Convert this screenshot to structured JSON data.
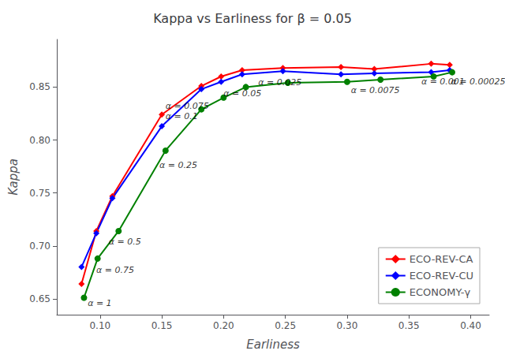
{
  "chart_data": {
    "type": "line",
    "title": "Kappa vs Earliness for β = 0.05",
    "xlabel": "Earliness",
    "ylabel": "Kappa",
    "xlim": [
      0.065,
      0.415
    ],
    "ylim": [
      0.635,
      0.895
    ],
    "xticks": [
      {
        "value": 0.1,
        "label": "0.10"
      },
      0.15,
      {
        "value": 0.2,
        "label": "0.20"
      },
      0.25,
      {
        "value": 0.3,
        "label": "0.30"
      },
      0.35,
      {
        "value": 0.4,
        "label": "0.40"
      }
    ],
    "yticks": [
      0.65,
      {
        "value": 0.7,
        "label": "0.70"
      },
      0.75,
      {
        "value": 0.8,
        "label": "0.80"
      },
      0.85
    ],
    "grid": false,
    "legend": "lower right",
    "series": [
      {
        "name": "ECO-REV-CA",
        "color": "red",
        "marker": "diamond",
        "x": [
          0.085,
          0.097,
          0.11,
          0.15,
          0.182,
          0.198,
          0.215,
          0.248,
          0.295,
          0.322,
          0.368,
          0.383
        ],
        "values": [
          0.664,
          0.714,
          0.747,
          0.824,
          0.851,
          0.86,
          0.866,
          0.868,
          0.869,
          0.867,
          0.872,
          0.871
        ]
      },
      {
        "name": "ECO-REV-CU",
        "color": "blue",
        "marker": "diamond",
        "x": [
          0.085,
          0.097,
          0.11,
          0.15,
          0.182,
          0.198,
          0.215,
          0.248,
          0.295,
          0.322,
          0.368,
          0.383
        ],
        "values": [
          0.68,
          0.712,
          0.745,
          0.813,
          0.848,
          0.855,
          0.862,
          0.865,
          0.862,
          0.863,
          0.864,
          0.866
        ]
      },
      {
        "name": "ECONOMY-γ",
        "color": "green",
        "marker": "circle",
        "x": [
          0.087,
          0.098,
          0.115,
          0.153,
          0.182,
          0.2,
          0.218,
          0.252,
          0.3,
          0.327,
          0.37,
          0.385
        ],
        "values": [
          0.651,
          0.688,
          0.714,
          0.79,
          0.829,
          0.84,
          0.85,
          0.854,
          0.855,
          0.857,
          0.86,
          0.864
        ]
      }
    ],
    "annotations": [
      {
        "text": "α = 1",
        "x": 0.09,
        "y": 0.642
      },
      {
        "text": "α = 0.75",
        "x": 0.097,
        "y": 0.673
      },
      {
        "text": "α = 0.5",
        "x": 0.107,
        "y": 0.7
      },
      {
        "text": "α = 0.25",
        "x": 0.148,
        "y": 0.772
      },
      {
        "text": "α = 0.1",
        "x": 0.153,
        "y": 0.818
      },
      {
        "text": "α = 0.075",
        "x": 0.153,
        "y": 0.828
      },
      {
        "text": "α = 0.05",
        "x": 0.2,
        "y": 0.84
      },
      {
        "text": "α = 0.025",
        "x": 0.228,
        "y": 0.85
      },
      {
        "text": "α = 0.0075",
        "x": 0.303,
        "y": 0.843
      },
      {
        "text": "α = 0.001",
        "x": 0.36,
        "y": 0.851
      },
      {
        "text": "α = 0.00025",
        "x": 0.384,
        "y": 0.851
      }
    ]
  }
}
